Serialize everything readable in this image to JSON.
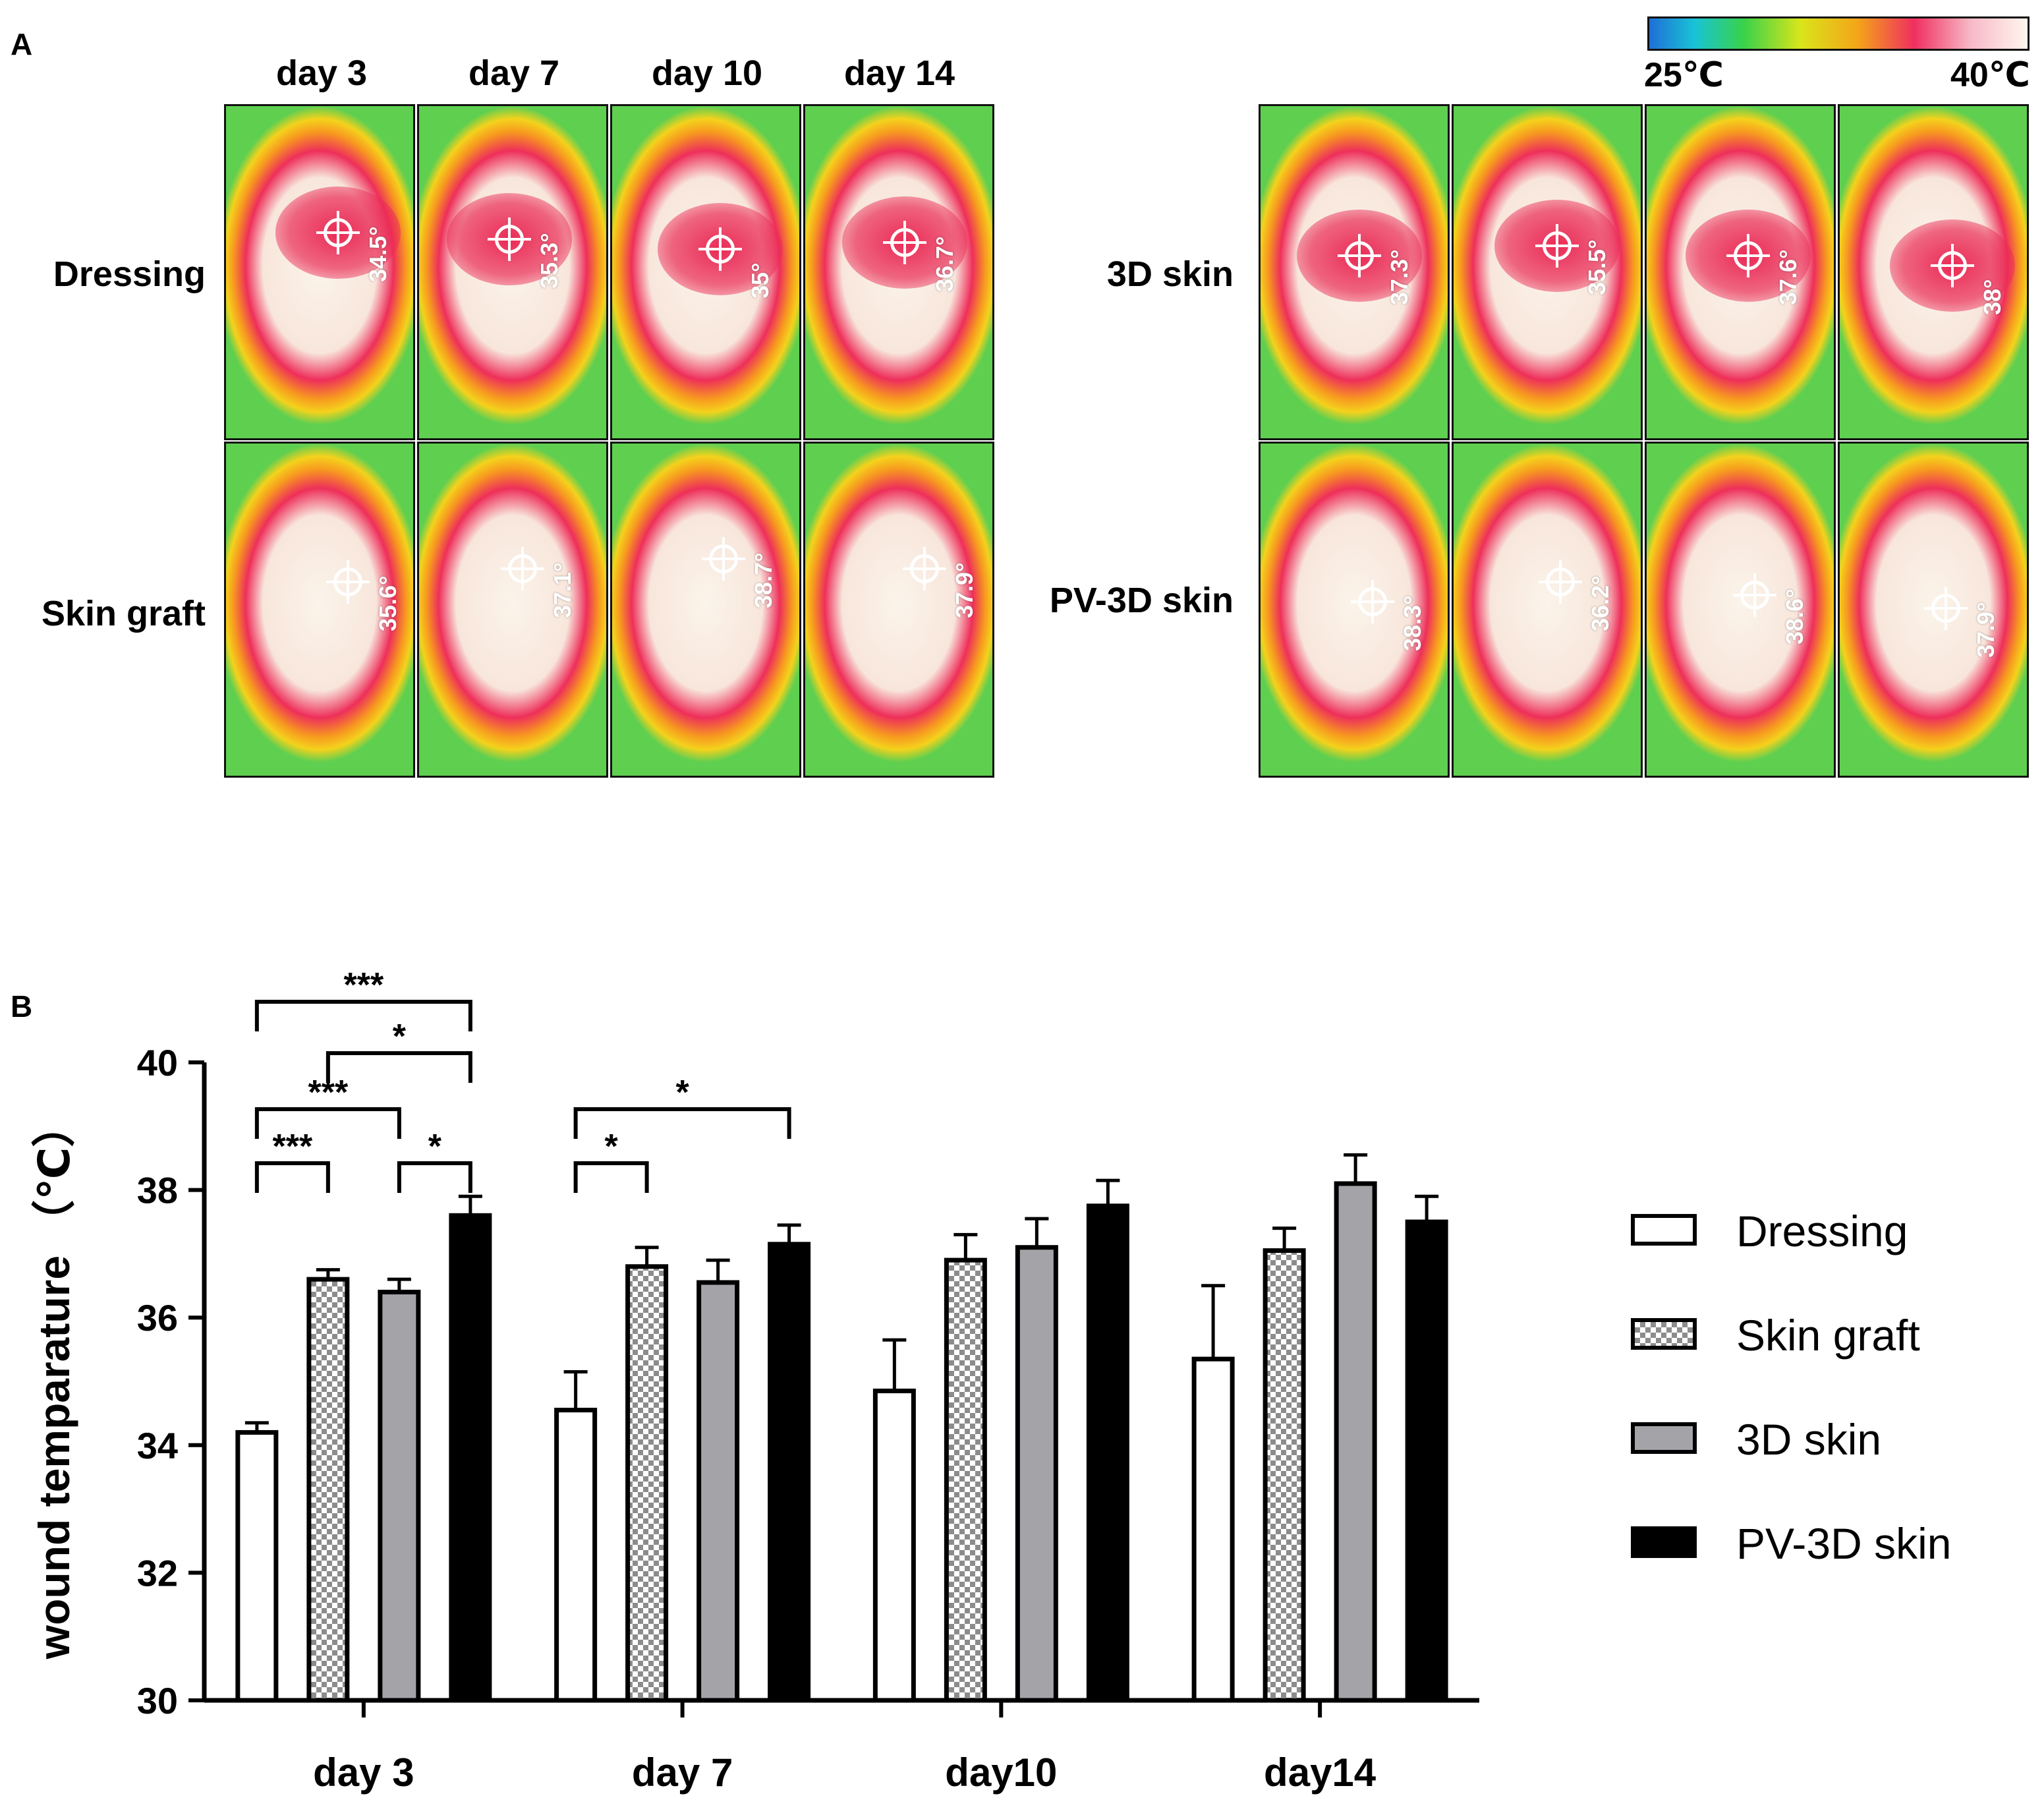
{
  "panel_a": {
    "label": "A",
    "days": [
      "day 3",
      "day 7",
      "day 10",
      "day 14"
    ],
    "colorbar": {
      "min_label": "25℃",
      "max_label": "40℃"
    },
    "groups": [
      {
        "label": "Dressing",
        "temps": [
          "34.5°",
          "35.3°",
          "35°",
          "36.7°"
        ]
      },
      {
        "label": "Skin graft",
        "temps": [
          "35.6°",
          "37.1°",
          "38.7°",
          "37.9°"
        ]
      },
      {
        "label": "3D skin",
        "temps": [
          "37.3°",
          "35.5°",
          "37.6°",
          "38°"
        ]
      },
      {
        "label": "PV-3D skin",
        "temps": [
          "38.3°",
          "36.2°",
          "38.6°",
          "37.9°"
        ]
      }
    ]
  },
  "chart_data": {
    "panel_label": "B",
    "type": "bar",
    "ylabel": "wound temparature （℃）",
    "ylim": [
      30,
      40
    ],
    "yticks": [
      30,
      32,
      34,
      36,
      38,
      40
    ],
    "categories": [
      "day 3",
      "day 7",
      "day10",
      "day14"
    ],
    "series": [
      {
        "name": "Dressing",
        "values": [
          34.2,
          34.55,
          34.85,
          35.35
        ],
        "errors": [
          0.15,
          0.6,
          0.8,
          1.15
        ],
        "style": "white"
      },
      {
        "name": "Skin graft",
        "values": [
          36.6,
          36.8,
          36.9,
          37.05
        ],
        "errors": [
          0.15,
          0.3,
          0.4,
          0.35
        ],
        "style": "checker"
      },
      {
        "name": "3D skin",
        "values": [
          36.4,
          36.55,
          37.1,
          38.1
        ],
        "errors": [
          0.2,
          0.35,
          0.45,
          0.45
        ],
        "style": "gray"
      },
      {
        "name": "PV-3D skin",
        "values": [
          37.6,
          37.15,
          37.75,
          37.5
        ],
        "errors": [
          0.3,
          0.3,
          0.4,
          0.4
        ],
        "style": "black"
      }
    ],
    "significance": [
      {
        "category": 0,
        "from": 0,
        "to": 3,
        "label": "***"
      },
      {
        "category": 0,
        "from": 1,
        "to": 3,
        "label": "*"
      },
      {
        "category": 0,
        "from": 0,
        "to": 2,
        "label": "***"
      },
      {
        "category": 0,
        "from": 0,
        "to": 1,
        "label": "***"
      },
      {
        "category": 0,
        "from": 2,
        "to": 3,
        "label": "*"
      },
      {
        "category": 1,
        "from": 0,
        "to": 3,
        "label": "*"
      },
      {
        "category": 1,
        "from": 0,
        "to": 1,
        "label": "*"
      }
    ],
    "legend": [
      "Dressing",
      "Skin graft",
      "3D skin",
      "PV-3D skin"
    ]
  }
}
